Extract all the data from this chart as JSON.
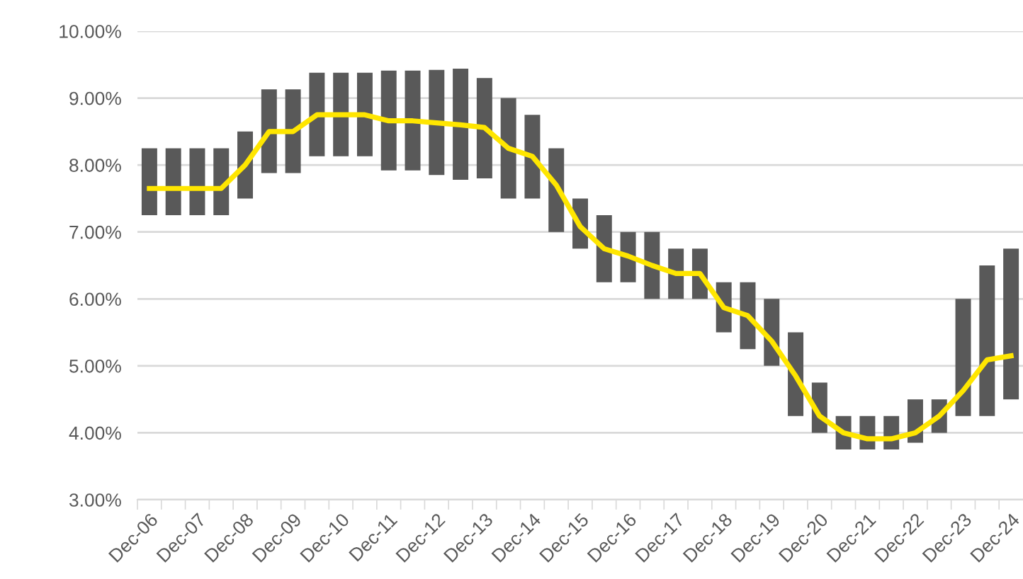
{
  "chart_data": {
    "type": "bar",
    "categories": [
      "Dec-06",
      null,
      "Dec-07",
      null,
      "Dec-08",
      null,
      "Dec-09",
      null,
      "Dec-10",
      null,
      "Dec-11",
      null,
      "Dec-12",
      null,
      "Dec-13",
      null,
      "Dec-14",
      null,
      "Dec-15",
      null,
      "Dec-16",
      null,
      "Dec-17",
      null,
      "Dec-18",
      null,
      "Dec-19",
      null,
      "Dec-20",
      null,
      "Dec-21",
      null,
      "Dec-22",
      null,
      "Dec-23",
      null,
      "Dec-24"
    ],
    "series": [
      {
        "color": "#595959",
        "base": [
          7.25,
          7.25,
          7.25,
          7.25,
          7.5,
          7.88,
          7.88,
          8.13,
          8.13,
          8.13,
          7.92,
          7.92,
          7.85,
          7.78,
          7.8,
          7.5,
          7.5,
          7.0,
          6.75,
          6.25,
          6.25,
          6.0,
          6.0,
          6.0,
          5.5,
          5.25,
          5.0,
          4.25,
          4.0,
          3.75,
          3.75,
          3.75,
          3.85,
          4.0,
          4.25,
          4.25,
          4.5
        ],
        "values": [
          1.0,
          1.0,
          1.0,
          1.0,
          1.0,
          1.25,
          1.25,
          1.25,
          1.25,
          1.25,
          1.49,
          1.49,
          1.57,
          1.66,
          1.5,
          1.5,
          1.25,
          1.25,
          0.75,
          1.0,
          0.75,
          1.0,
          0.75,
          0.75,
          0.75,
          1.0,
          1.0,
          1.25,
          0.75,
          0.5,
          0.5,
          0.5,
          0.65,
          0.5,
          1.75,
          2.25,
          2.25
        ]
      },
      {
        "type": "line",
        "color": "#ffe600",
        "values": [
          7.65,
          7.65,
          7.65,
          7.65,
          8.0,
          8.5,
          8.5,
          8.75,
          8.75,
          8.75,
          8.66,
          8.66,
          8.63,
          8.6,
          8.56,
          8.25,
          8.13,
          7.7,
          7.08,
          6.75,
          6.64,
          6.5,
          6.38,
          6.38,
          5.87,
          5.75,
          5.37,
          4.85,
          4.25,
          4.0,
          3.91,
          3.91,
          4.0,
          4.25,
          4.63,
          5.09,
          5.15
        ]
      }
    ],
    "ylim": [
      3,
      10
    ],
    "yticks": [
      {
        "value": 3,
        "label": "3.00%"
      },
      {
        "value": 4,
        "label": "4.00%"
      },
      {
        "value": 5,
        "label": "5.00%"
      },
      {
        "value": 6,
        "label": "6.00%"
      },
      {
        "value": 7,
        "label": "7.00%"
      },
      {
        "value": 8,
        "label": "8.00%"
      },
      {
        "value": 9,
        "label": "9.00%"
      },
      {
        "value": 10,
        "label": "10.00%"
      }
    ],
    "grid": "y"
  }
}
